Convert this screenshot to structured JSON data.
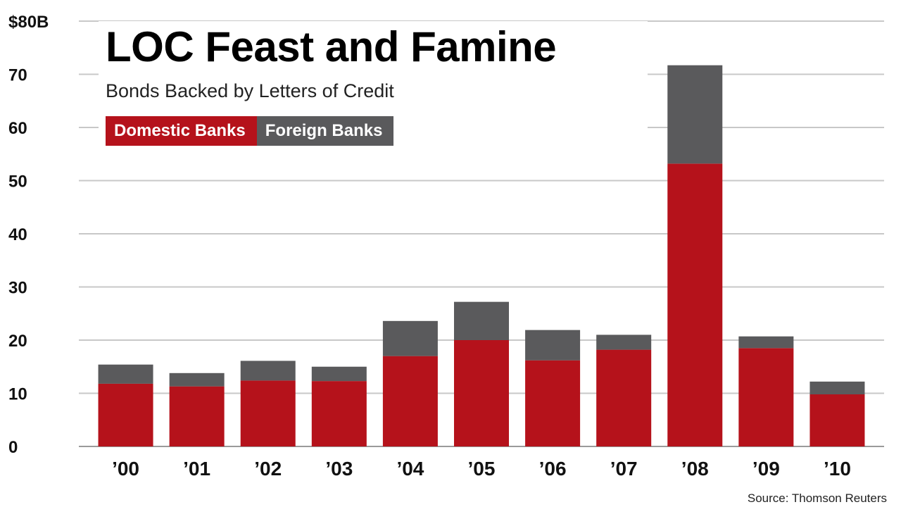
{
  "chart_data": {
    "type": "bar",
    "stacked": true,
    "title": "LOC Feast and Famine",
    "subtitle": "Bonds Backed by Letters of Credit",
    "categories": [
      "’00",
      "’01",
      "’02",
      "’03",
      "’04",
      "’05",
      "’06",
      "’07",
      "’08",
      "’09",
      "’10"
    ],
    "series": [
      {
        "name": "Domestic Banks",
        "color": "#b5121b",
        "values": [
          11.8,
          11.3,
          12.4,
          12.3,
          17.0,
          20.0,
          16.2,
          18.2,
          53.2,
          18.5,
          9.8
        ]
      },
      {
        "name": "Foreign Banks",
        "color": "#5a5a5c",
        "values": [
          3.6,
          2.5,
          3.7,
          2.7,
          6.6,
          7.2,
          5.7,
          2.8,
          18.5,
          2.2,
          2.4
        ]
      }
    ],
    "ylim": [
      0,
      80
    ],
    "yticks": [
      0,
      10,
      20,
      30,
      40,
      50,
      60,
      70
    ],
    "ytick_labels": [
      "0",
      "10",
      "20",
      "30",
      "40",
      "50",
      "60",
      "70"
    ],
    "ymax_label": "$80B",
    "grid": true,
    "legend": {
      "placement": "top-left",
      "items": [
        "Domestic Banks",
        "Foreign Banks"
      ]
    },
    "source": "Source: Thomson Reuters",
    "grid_color": "#c8c8c8"
  }
}
